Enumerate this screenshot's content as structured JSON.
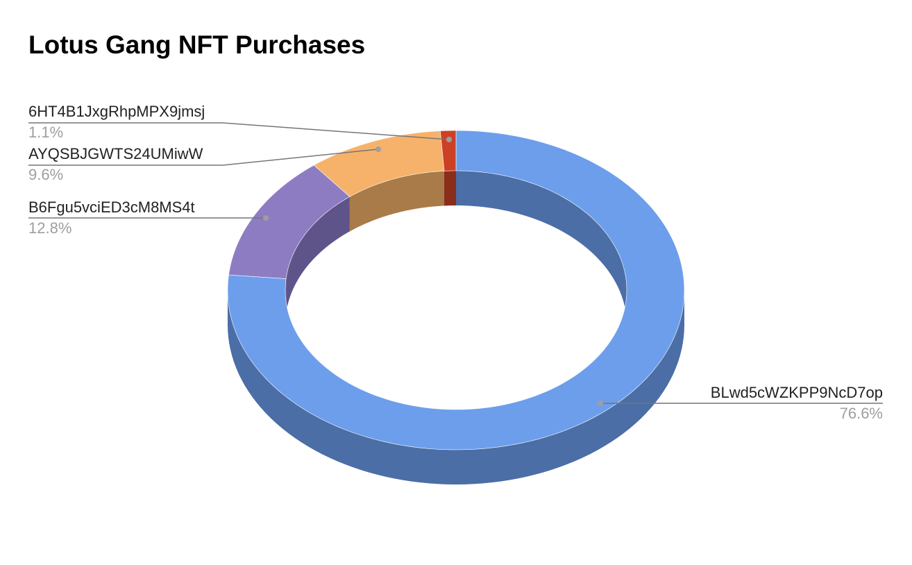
{
  "chart_data": {
    "type": "pie",
    "variant": "3d-donut",
    "title": "Lotus Gang NFT Purchases",
    "slices": [
      {
        "label": "BLwd5cWZKPP9NcD7op",
        "value": 76.6,
        "value_label": "76.6%",
        "color": "#6d9eeb",
        "side_color": "#4b6ea6"
      },
      {
        "label": "B6Fgu5vciED3cM8MS4t",
        "value": 12.8,
        "value_label": "12.8%",
        "color": "#8e7cc3",
        "side_color": "#5f548a"
      },
      {
        "label": "AYQSBJGWTS24UMiwW",
        "value": 9.6,
        "value_label": "9.6%",
        "color": "#f6b26b",
        "side_color": "#a97b48"
      },
      {
        "label": "6HT4B1JxgRhpMPX9jmsj",
        "value": 1.1,
        "value_label": "1.1%",
        "color": "#cc4125",
        "side_color": "#8a2d1a"
      }
    ],
    "legend": "none",
    "labels": "outside with leader lines"
  }
}
